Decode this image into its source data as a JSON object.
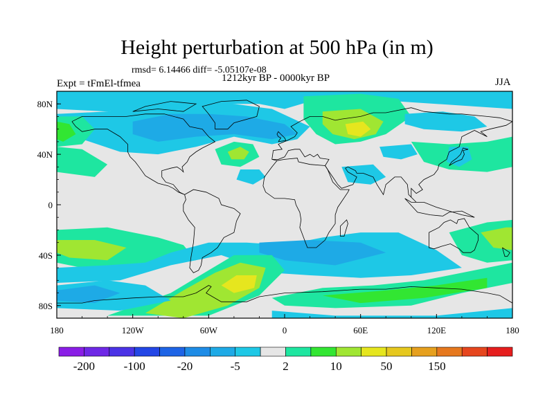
{
  "title": "Height perturbation at 500 hPa (in m)",
  "header": {
    "rmsd_line": "rmsd= 6.14466 diff= -5.05107e-08",
    "period": "1212kyr BP - 0000kyr BP",
    "experiment": "Expt = tFmEl-tfmea",
    "season": "JJA"
  },
  "axes": {
    "lat_labels": [
      {
        "text": "80N",
        "lat": 80
      },
      {
        "text": "40N",
        "lat": 40
      },
      {
        "text": "0",
        "lat": 0
      },
      {
        "text": "40S",
        "lat": -40
      },
      {
        "text": "80S",
        "lat": -80
      }
    ],
    "lon_labels": [
      {
        "text": "180",
        "lon": -180
      },
      {
        "text": "120W",
        "lon": -120
      },
      {
        "text": "60W",
        "lon": -60
      },
      {
        "text": "0",
        "lon": 0
      },
      {
        "text": "60E",
        "lon": 60
      },
      {
        "text": "120E",
        "lon": 120
      },
      {
        "text": "180",
        "lon": 180
      }
    ],
    "lat_range": [
      -90,
      90
    ],
    "lon_range": [
      -180,
      180
    ]
  },
  "colorbar": {
    "colors": [
      "#8a1ee6",
      "#6e28e6",
      "#4b32e6",
      "#2346e6",
      "#1e64e6",
      "#1e8ce6",
      "#1eaae6",
      "#1ec8e6",
      "#e6e6e6",
      "#1ee6a0",
      "#32e632",
      "#a0e632",
      "#e6e61e",
      "#e6c81e",
      "#e6a01e",
      "#e6781e",
      "#e6461e",
      "#e61e1e"
    ],
    "labels": [
      {
        "text": "-200",
        "boundary": 1
      },
      {
        "text": "-100",
        "boundary": 3
      },
      {
        "text": "-20",
        "boundary": 5
      },
      {
        "text": "-5",
        "boundary": 7
      },
      {
        "text": "2",
        "boundary": 9
      },
      {
        "text": "10",
        "boundary": 11
      },
      {
        "text": "50",
        "boundary": 13
      },
      {
        "text": "150",
        "boundary": 15
      }
    ]
  },
  "field_colors": {
    "neutral": "#e6e6e6",
    "blue_light": "#1ec8e6",
    "blue_mid": "#1eaae6",
    "blue_dark": "#1e8ce6",
    "green": "#1ee6a0",
    "green_light": "#32e632",
    "yellow_green": "#a0e632",
    "yellow": "#e6e61e",
    "orange": "#e6c81e"
  }
}
